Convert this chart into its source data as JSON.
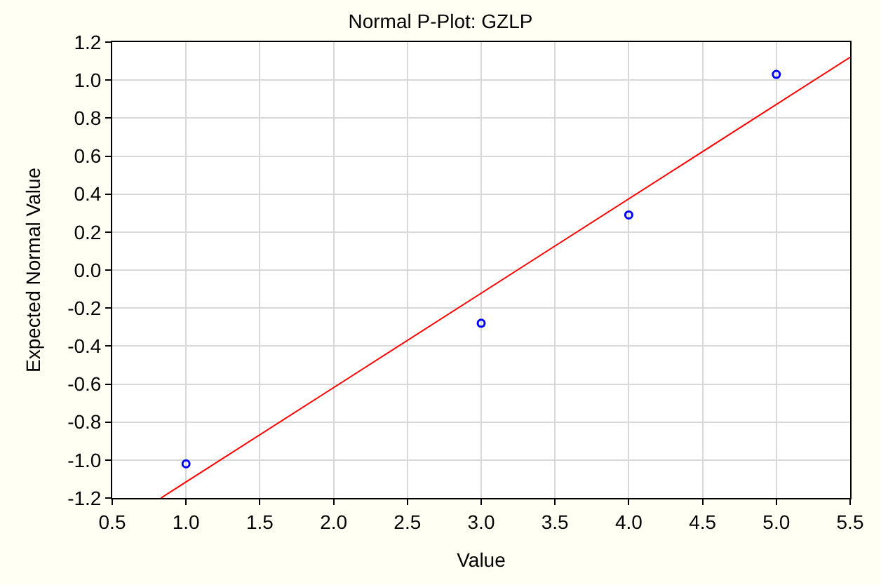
{
  "chart_data": {
    "type": "scatter",
    "title": "Normal P-Plot: GZLP",
    "xlabel": "Value",
    "ylabel": "Expected Normal Value",
    "series": [
      {
        "color": "#0000ff",
        "marker": "circle",
        "x": [
          1.0,
          3.0,
          4.0,
          5.0
        ],
        "values": [
          -1.02,
          -0.28,
          0.29,
          1.03
        ]
      },
      {
        "type": "line",
        "color": "#ff0000",
        "marker": "none",
        "line_style": "solid",
        "x": [
          0.83,
          5.5
        ],
        "values": [
          -1.2,
          1.12
        ]
      }
    ],
    "xlim": [
      0.5,
      5.5
    ],
    "xticks": [
      0.5,
      {
        "value": 1.0,
        "label": "1.0"
      },
      1.5,
      {
        "value": 2.0,
        "label": "2.0"
      },
      2.5,
      {
        "value": 3.0,
        "label": "3.0"
      },
      3.5,
      {
        "value": 4.0,
        "label": "4.0"
      },
      4.5,
      {
        "value": 5.0,
        "label": "5.0"
      },
      5.5
    ],
    "ylim": [
      -1.2,
      1.2
    ],
    "yticks": [
      -1.2,
      {
        "value": -1.0,
        "label": "-1.0"
      },
      -0.8,
      -0.6,
      -0.4,
      -0.2,
      {
        "value": 0.0,
        "label": "0.0"
      },
      0.2,
      0.4,
      0.6,
      0.8,
      {
        "value": 1.0,
        "label": "1.0"
      },
      1.2
    ],
    "grid": true
  }
}
